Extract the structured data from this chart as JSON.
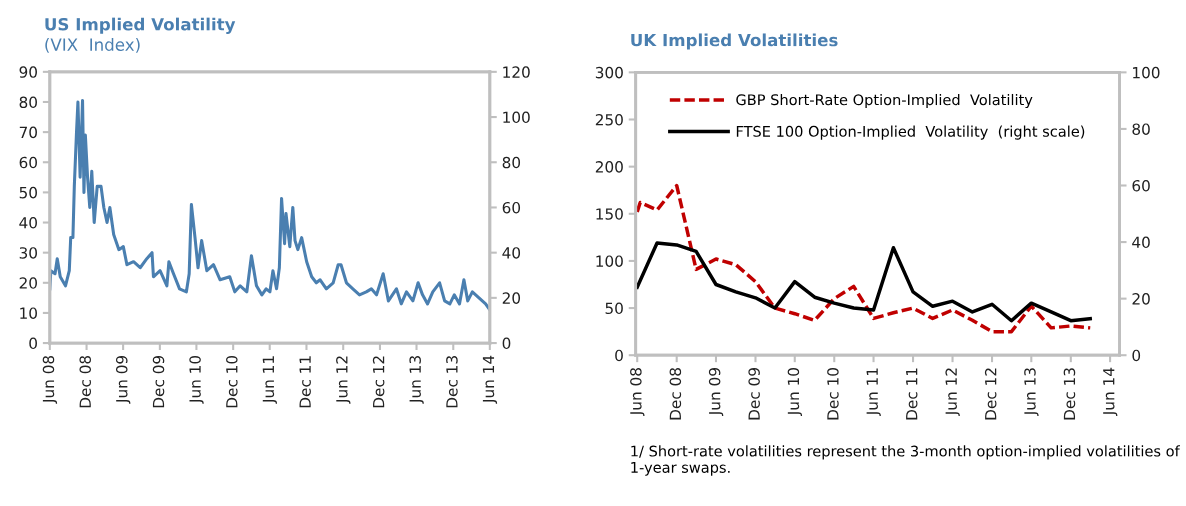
{
  "chart_data": [
    {
      "type": "line",
      "title": "US Implied Volatility",
      "subtitle": "(VIX  Index)",
      "xlim": [
        "2008-06-01",
        "2014-06-01"
      ],
      "xticks": [
        {
          "value": "2008-06-01",
          "label": "Jun 08"
        },
        {
          "value": "2008-12-01",
          "label": "Dec 08"
        },
        {
          "value": "2009-06-01",
          "label": "Jun 09"
        },
        {
          "value": "2009-12-01",
          "label": "Dec 09"
        },
        {
          "value": "2010-06-01",
          "label": "Jun 10"
        },
        {
          "value": "2010-12-01",
          "label": "Dec 10"
        },
        {
          "value": "2011-06-01",
          "label": "Jun 11"
        },
        {
          "value": "2011-12-01",
          "label": "Dec 11"
        },
        {
          "value": "2012-06-01",
          "label": "Jun 12"
        },
        {
          "value": "2012-12-01",
          "label": "Dec 12"
        },
        {
          "value": "2013-06-01",
          "label": "Jun 13"
        },
        {
          "value": "2013-12-01",
          "label": "Dec 13"
        },
        {
          "value": "2014-06-01",
          "label": "Jun 14"
        }
      ],
      "ylim": [
        0,
        90
      ],
      "yticks": [
        0,
        10,
        20,
        30,
        40,
        50,
        60,
        70,
        80,
        90
      ],
      "y2lim": [
        0,
        120
      ],
      "y2ticks": [
        0,
        20,
        40,
        60,
        80,
        100,
        120
      ],
      "grid": false,
      "legend": false,
      "line_style": "solid",
      "series": [
        {
          "color": "#4a7fb0",
          "x": [
            "2008-06-01",
            "2008-06-06",
            "2008-06-27",
            "2008-07-08",
            "2008-07-23",
            "2008-08-18",
            "2008-09-06",
            "2008-09-13",
            "2008-09-24",
            "2008-10-01",
            "2008-10-12",
            "2008-10-19",
            "2008-10-30",
            "2008-11-11",
            "2008-11-18",
            "2008-11-25",
            "2008-12-06",
            "2008-12-17",
            "2008-12-27",
            "2009-01-08",
            "2009-01-23",
            "2009-02-11",
            "2009-02-25",
            "2009-03-13",
            "2009-03-27",
            "2009-04-15",
            "2009-05-11",
            "2009-06-02",
            "2009-06-20",
            "2009-07-23",
            "2009-08-25",
            "2009-09-27",
            "2009-10-23",
            "2009-10-30",
            "2009-12-02",
            "2010-01-05",
            "2010-01-15",
            "2010-02-07",
            "2010-03-09",
            "2010-04-12",
            "2010-04-26",
            "2010-05-07",
            "2010-05-25",
            "2010-06-09",
            "2010-06-27",
            "2010-07-23",
            "2010-08-25",
            "2010-09-27",
            "2010-11-14",
            "2010-12-09",
            "2011-01-05",
            "2011-02-07",
            "2011-03-02",
            "2011-03-27",
            "2011-04-23",
            "2011-05-14",
            "2011-06-02",
            "2011-06-17",
            "2011-07-05",
            "2011-07-19",
            "2011-07-30",
            "2011-08-14",
            "2011-08-21",
            "2011-09-09",
            "2011-09-24",
            "2011-10-05",
            "2011-10-19",
            "2011-11-07",
            "2011-12-02",
            "2011-12-27",
            "2012-01-19",
            "2012-02-07",
            "2012-03-09",
            "2012-04-12",
            "2012-05-07",
            "2012-05-21",
            "2012-06-17",
            "2012-07-19",
            "2012-08-21",
            "2012-09-24",
            "2012-10-19",
            "2012-11-14",
            "2012-12-17",
            "2013-01-12",
            "2013-02-21",
            "2013-03-17",
            "2013-04-12",
            "2013-05-14",
            "2013-06-09",
            "2013-07-01",
            "2013-07-26",
            "2013-08-21",
            "2013-09-24",
            "2013-10-19",
            "2013-11-14",
            "2013-12-06",
            "2014-01-01",
            "2014-01-23",
            "2014-02-11",
            "2014-03-06",
            "2014-04-08",
            "2014-05-11",
            "2014-06-01"
          ],
          "values": [
            18,
            24,
            23,
            28,
            22,
            19,
            24,
            35,
            35,
            52,
            70,
            80,
            55,
            80.5,
            50,
            69,
            55,
            45,
            57,
            40,
            52,
            52,
            45,
            40,
            45,
            36,
            31,
            32,
            26,
            27,
            25,
            28,
            30,
            22,
            24,
            19,
            27,
            23,
            18,
            17,
            23,
            46,
            35,
            25,
            34,
            24,
            26,
            21,
            22,
            17,
            19,
            17,
            29,
            19,
            16,
            18,
            17,
            24,
            18,
            25,
            48,
            33,
            43,
            32,
            45,
            34,
            31,
            35,
            27,
            22,
            20,
            21,
            18,
            20,
            26,
            26,
            20,
            18,
            16,
            17,
            18,
            16,
            23,
            14,
            18,
            13,
            17,
            14,
            20,
            16,
            13,
            17,
            20,
            14,
            13,
            16,
            13,
            21,
            14,
            17,
            15,
            13,
            11
          ]
        }
      ]
    },
    {
      "type": "line",
      "title": "UK Implied Volatilities",
      "annotations": [
        "1/ Short-rate volatilities represent the 3-month option-implied volatilities of 1-year swaps."
      ],
      "xlim": [
        "2008-05-25",
        "2014-07-15"
      ],
      "xticks": [
        {
          "value": "2008-06-01",
          "label": "Jun 08"
        },
        {
          "value": "2008-12-01",
          "label": "Dec 08"
        },
        {
          "value": "2009-06-01",
          "label": "Jun 09"
        },
        {
          "value": "2009-12-01",
          "label": "Dec 09"
        },
        {
          "value": "2010-06-01",
          "label": "Jun 10"
        },
        {
          "value": "2010-12-01",
          "label": "Dec 10"
        },
        {
          "value": "2011-06-01",
          "label": "Jun 11"
        },
        {
          "value": "2011-12-01",
          "label": "Dec 11"
        },
        {
          "value": "2012-06-01",
          "label": "Jun 12"
        },
        {
          "value": "2012-12-01",
          "label": "Dec 12"
        },
        {
          "value": "2013-06-01",
          "label": "Jun 13"
        },
        {
          "value": "2013-12-01",
          "label": "Dec 13"
        },
        {
          "value": "2014-06-01",
          "label": "Jun 14"
        }
      ],
      "ylim": [
        0,
        300
      ],
      "yticks": [
        0,
        50,
        100,
        150,
        200,
        250,
        300
      ],
      "y2lim": [
        0,
        100
      ],
      "y2ticks": [
        0,
        20,
        40,
        60,
        80,
        100
      ],
      "grid": false,
      "legend": "top",
      "series": [
        {
          "name": "GBP Short-Rate Option-Implied  Volatility",
          "color": "#c00000",
          "line_style": "dashed",
          "x": [
            "2008-06-01",
            "2008-06-15",
            "2008-09-01",
            "2008-12-01",
            "2009-03-01",
            "2009-06-01",
            "2009-09-01",
            "2009-12-01",
            "2010-03-01",
            "2010-06-01",
            "2010-09-01",
            "2010-12-01",
            "2011-03-01",
            "2011-06-01",
            "2011-09-01",
            "2011-12-01",
            "2012-03-01",
            "2012-06-01",
            "2012-09-01",
            "2012-12-01",
            "2013-03-01",
            "2013-06-01",
            "2013-09-01",
            "2013-12-01",
            "2014-03-01"
          ],
          "values": [
            152,
            162,
            154,
            180,
            91,
            102,
            96,
            78,
            50,
            44,
            37,
            60,
            73,
            39,
            45,
            50,
            39,
            48,
            37,
            25,
            25,
            52,
            29,
            31,
            29
          ]
        },
        {
          "name": "FTSE 100 Option-Implied  Volatility  (right scale)",
          "color": "#000000",
          "line_style": "solid",
          "axis": "y2",
          "x": [
            "2008-06-01",
            "2008-09-01",
            "2008-12-01",
            "2009-03-01",
            "2009-06-01",
            "2009-09-01",
            "2009-12-01",
            "2010-03-01",
            "2010-06-01",
            "2010-09-01",
            "2010-12-01",
            "2011-03-01",
            "2011-06-01",
            "2011-09-01",
            "2011-12-01",
            "2012-03-01",
            "2012-06-01",
            "2012-09-01",
            "2012-12-01",
            "2013-03-01",
            "2013-06-01",
            "2013-09-01",
            "2013-12-01",
            "2014-03-01"
          ],
          "values": [
            24,
            39.7,
            39,
            36.7,
            25,
            22.4,
            20.3,
            16.7,
            26,
            20.5,
            18.4,
            16.7,
            16,
            38,
            22.4,
            17.3,
            19.1,
            15.3,
            18,
            12.2,
            18.4,
            15.3,
            12.2,
            12.9
          ]
        }
      ]
    }
  ]
}
